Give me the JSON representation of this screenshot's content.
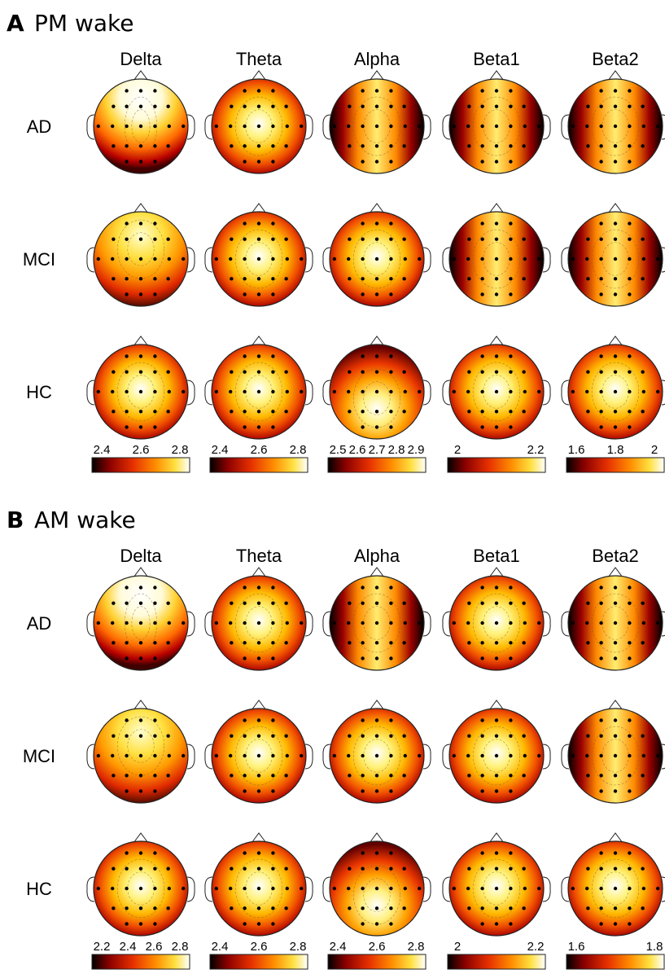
{
  "bands": [
    "Delta",
    "Theta",
    "Alpha",
    "Beta1",
    "Beta2"
  ],
  "groups": [
    "AD",
    "MCI",
    "HC"
  ],
  "colormap": [
    "#000000",
    "#8a0000",
    "#e63000",
    "#ff8c00",
    "#ffe040",
    "#ffffff"
  ],
  "panels": [
    {
      "letter": "A",
      "title": "PM wake",
      "colorbars": [
        {
          "band": "Delta",
          "ticks": [
            "2.4",
            "2.6",
            "2.8"
          ]
        },
        {
          "band": "Theta",
          "ticks": [
            "2.4",
            "2.6",
            "2.8"
          ]
        },
        {
          "band": "Alpha",
          "ticks": [
            "2.5",
            "2.6",
            "2.7",
            "2.8",
            "2.9"
          ]
        },
        {
          "band": "Beta1",
          "ticks": [
            "2",
            "2.2"
          ]
        },
        {
          "band": "Beta2",
          "ticks": [
            "1.6",
            "1.8",
            "2"
          ]
        }
      ],
      "maps": [
        [
          "midline",
          "center",
          "sides",
          "sides",
          "sides"
        ],
        [
          "top",
          "center",
          "center",
          "sides",
          "sides"
        ],
        [
          "center",
          "center",
          "bottom",
          "center",
          "center"
        ]
      ]
    },
    {
      "letter": "B",
      "title": "AM wake",
      "colorbars": [
        {
          "band": "Delta",
          "ticks": [
            "2.2",
            "2.4",
            "2.6",
            "2.8"
          ]
        },
        {
          "band": "Theta",
          "ticks": [
            "2.4",
            "2.6",
            "2.8"
          ]
        },
        {
          "band": "Alpha",
          "ticks": [
            "2.4",
            "2.6",
            "2.8"
          ]
        },
        {
          "band": "Beta1",
          "ticks": [
            "2",
            "2.2"
          ]
        },
        {
          "band": "Beta2",
          "ticks": [
            "1.6",
            "1.8"
          ]
        }
      ],
      "maps": [
        [
          "midline",
          "center",
          "sides",
          "center",
          "sides"
        ],
        [
          "top",
          "center",
          "center",
          "center",
          "sides"
        ],
        [
          "center",
          "center",
          "bottom",
          "center",
          "center"
        ]
      ]
    }
  ]
}
